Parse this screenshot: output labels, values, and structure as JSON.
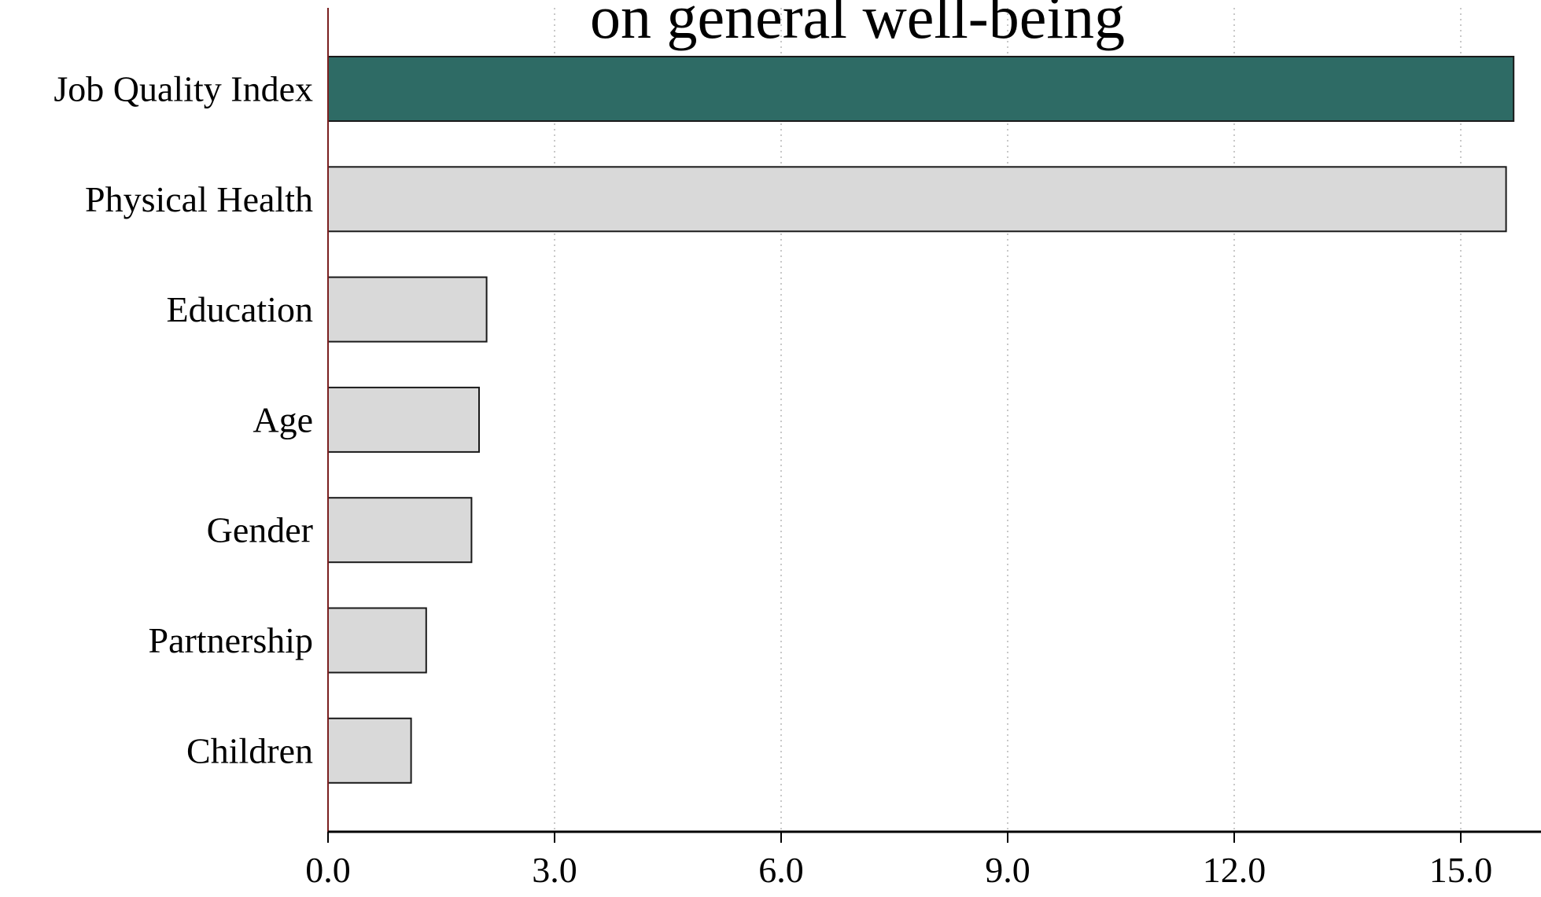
{
  "chart_data": {
    "type": "bar",
    "orientation": "horizontal",
    "title": "on general well-being",
    "categories": [
      "Job Quality Index",
      "Physical Health",
      "Education",
      "Age",
      "Gender",
      "Partnership",
      "Children"
    ],
    "values": [
      15.7,
      15.6,
      2.1,
      2.0,
      1.9,
      1.3,
      1.1
    ],
    "highlight_category": "Job Quality Index",
    "xlim": [
      0.0,
      15.7
    ],
    "xticks": [
      "0.0",
      "3.0",
      "6.0",
      "9.0",
      "12.0",
      "15.0"
    ],
    "xtick_values": [
      0,
      3,
      6,
      9,
      12,
      15
    ],
    "xlabel": "",
    "ylabel": "",
    "grid": "vertical dotted",
    "legend": "none"
  },
  "colors": {
    "highlight_bar": "#2e6b65",
    "default_bar": "#d9d9d9",
    "bar_stroke": "#1a1a1a",
    "grid": "#b5b5b5",
    "y_axis_line": "#7a1f1f",
    "x_axis_line": "#000000"
  }
}
